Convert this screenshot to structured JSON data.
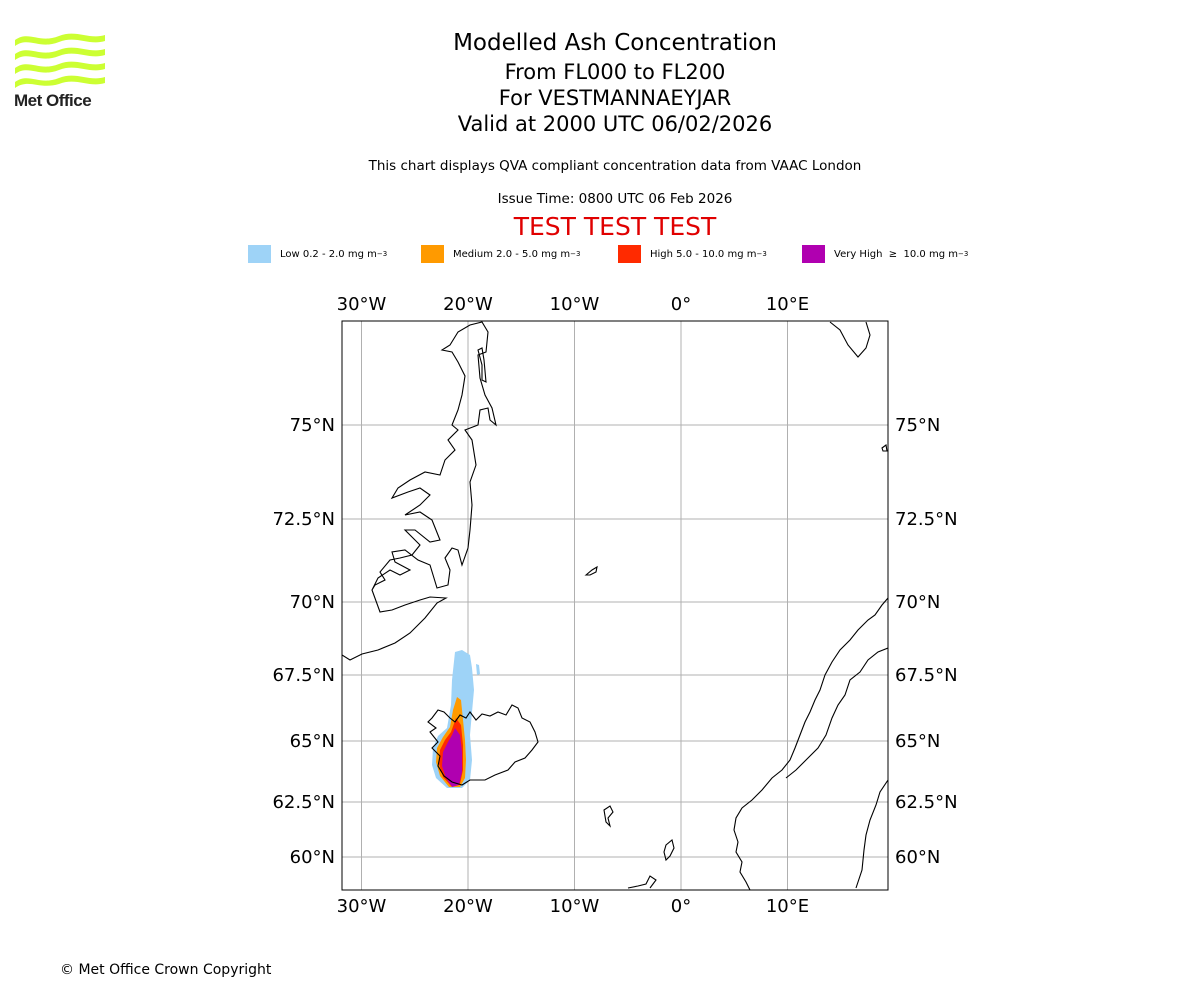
{
  "logo": {
    "text": "Met Office",
    "brand_color": "#ccff33"
  },
  "header": {
    "title": "Modelled Ash Concentration",
    "levels": "From FL000 to FL200",
    "volcano": "For VESTMANNAEYJAR",
    "valid": "Valid at 2000 UTC 06/02/2026",
    "subtitle": "This chart displays QVA compliant concentration data from VAAC London",
    "issue": "Issue Time: 0800 UTC 06 Feb 2026",
    "test_banner": "TEST TEST TEST"
  },
  "legend": [
    {
      "label": "Low 0.2 - 2.0 mg m",
      "sup": "−3",
      "color": "#9ed3f7"
    },
    {
      "label": "Medium 2.0 - 5.0 mg m",
      "sup": "−3",
      "color": "#ff9a00"
    },
    {
      "label": "High 5.0 - 10.0 mg m",
      "sup": "−3",
      "color": "#ff2a00"
    },
    {
      "label": "Very High  ≥  10.0 mg m",
      "sup": "−3",
      "color": "#b000b0"
    }
  ],
  "footer": {
    "copyright": "© Met Office Crown Copyright"
  },
  "chart_data": {
    "type": "map",
    "title": "Modelled Ash Concentration",
    "projection": "north polar stereographic",
    "x_ticks": [
      {
        "lon": -30,
        "label": "30°W"
      },
      {
        "lon": -20,
        "label": "20°W"
      },
      {
        "lon": -10,
        "label": "10°W"
      },
      {
        "lon": 0,
        "label": "0°"
      },
      {
        "lon": 10,
        "label": "10°E"
      }
    ],
    "y_ticks": [
      {
        "lat": 75,
        "label": "75°N"
      },
      {
        "lat": 72.5,
        "label": "72.5°N"
      },
      {
        "lat": 70,
        "label": "70°N"
      },
      {
        "lat": 67.5,
        "label": "67.5°N"
      },
      {
        "lat": 65,
        "label": "65°N"
      },
      {
        "lat": 62.5,
        "label": "62.5°N"
      },
      {
        "lat": 60,
        "label": "60°N"
      }
    ],
    "ash_levels": [
      "Low",
      "Medium",
      "High",
      "Very High"
    ],
    "source_location": "Vestmannaeyjar, Iceland",
    "grid": true
  }
}
